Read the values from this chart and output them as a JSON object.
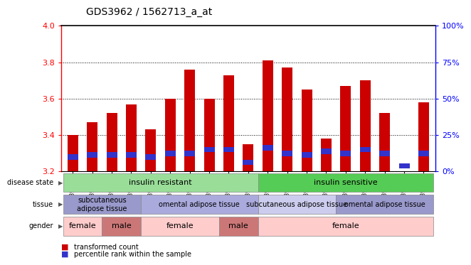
{
  "title": "GDS3962 / 1562713_a_at",
  "samples": [
    "GSM395775",
    "GSM395777",
    "GSM395774",
    "GSM395776",
    "GSM395784",
    "GSM395785",
    "GSM395787",
    "GSM395783",
    "GSM395786",
    "GSM395778",
    "GSM395779",
    "GSM395780",
    "GSM395781",
    "GSM395782",
    "GSM395788",
    "GSM395789",
    "GSM395790",
    "GSM395791",
    "GSM395792"
  ],
  "red_values": [
    3.4,
    3.47,
    3.52,
    3.57,
    3.43,
    3.6,
    3.76,
    3.6,
    3.73,
    3.35,
    3.81,
    3.77,
    3.65,
    3.38,
    3.67,
    3.7,
    3.52,
    3.2,
    3.58
  ],
  "blue_values": [
    3.28,
    3.29,
    3.29,
    3.29,
    3.28,
    3.3,
    3.3,
    3.32,
    3.32,
    3.25,
    3.33,
    3.3,
    3.29,
    3.31,
    3.3,
    3.32,
    3.3,
    3.23,
    3.3
  ],
  "ymin": 3.2,
  "ymax": 4.0,
  "yticks": [
    3.2,
    3.4,
    3.6,
    3.8,
    4.0
  ],
  "right_yticks": [
    0,
    25,
    50,
    75,
    100
  ],
  "bar_color": "#cc0000",
  "blue_color": "#3333cc",
  "disease_groups": [
    {
      "label": "insulin resistant",
      "start": 0,
      "end": 9,
      "color": "#99dd99"
    },
    {
      "label": "insulin sensitive",
      "start": 10,
      "end": 18,
      "color": "#55cc55"
    }
  ],
  "tissue_groups": [
    {
      "label": "subcutaneous\nadipose tissue",
      "start": 0,
      "end": 3,
      "color": "#9999cc"
    },
    {
      "label": "omental adipose tissue",
      "start": 4,
      "end": 9,
      "color": "#aaaadd"
    },
    {
      "label": "subcutaneous adipose tissue",
      "start": 10,
      "end": 13,
      "color": "#ccccee"
    },
    {
      "label": "omental adipose tissue",
      "start": 14,
      "end": 18,
      "color": "#9999cc"
    }
  ],
  "gender_groups": [
    {
      "label": "female",
      "start": 0,
      "end": 1,
      "color": "#ffcccc"
    },
    {
      "label": "male",
      "start": 2,
      "end": 3,
      "color": "#cc7777"
    },
    {
      "label": "female",
      "start": 4,
      "end": 7,
      "color": "#ffcccc"
    },
    {
      "label": "male",
      "start": 8,
      "end": 9,
      "color": "#cc7777"
    },
    {
      "label": "female",
      "start": 10,
      "end": 18,
      "color": "#ffcccc"
    }
  ]
}
